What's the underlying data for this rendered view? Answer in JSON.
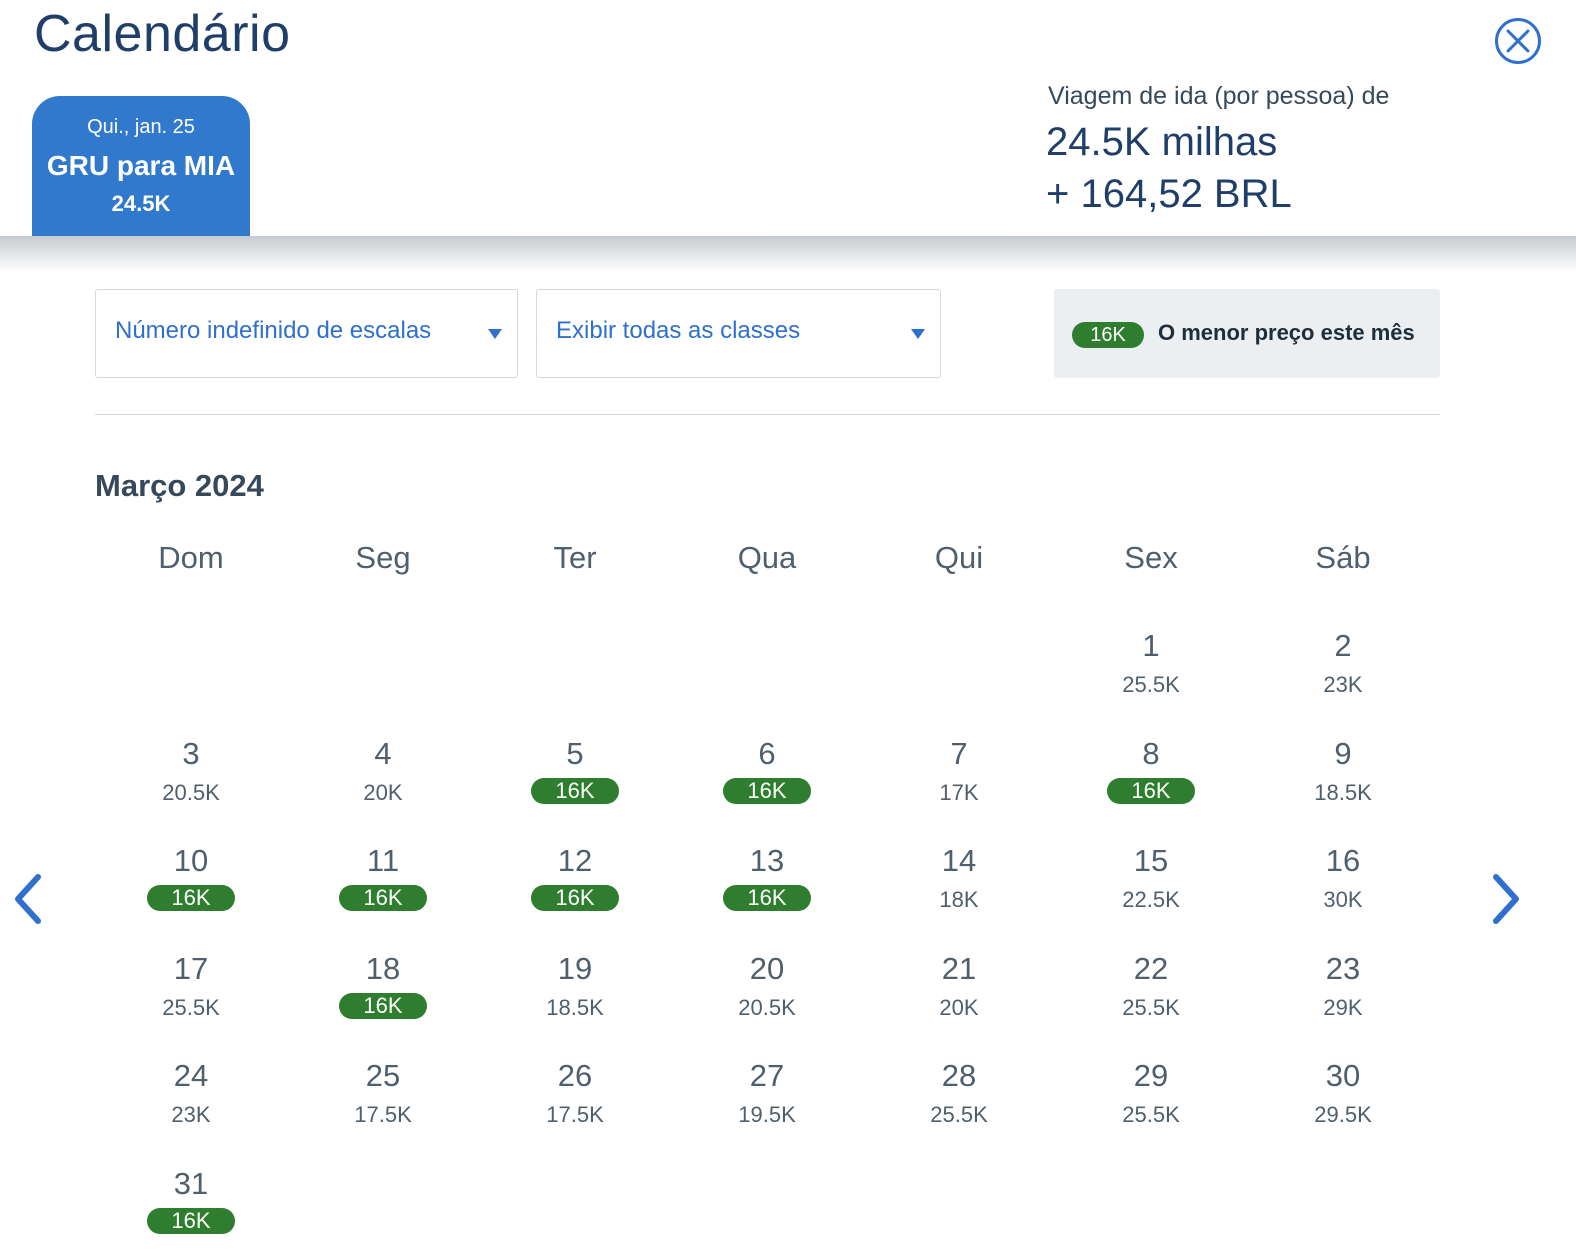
{
  "header": {
    "title": "Calendário",
    "tab": {
      "date": "Qui., jan. 25",
      "route": "GRU para MIA",
      "price": "24.5K"
    },
    "fare": {
      "label": "Viagem de ida (por pessoa) de",
      "miles": "24.5K milhas",
      "cash": "+ 164,52 BRL"
    }
  },
  "filters": {
    "stops": "Número indefinido de escalas",
    "cabin": "Exibir todas as classes"
  },
  "legend": {
    "badge": "16K",
    "text": "O menor preço este mês"
  },
  "colors": {
    "primary": "#3179cc",
    "accent_text": "#2f6fce",
    "lowest_badge": "#2f7d2f",
    "title": "#1f3f6a"
  },
  "icons": {
    "close": "close-icon",
    "prev": "chevron-left-icon",
    "next": "chevron-right-icon"
  },
  "calendar": {
    "month": "Março 2024",
    "weekdays": [
      "Dom",
      "Seg",
      "Ter",
      "Qua",
      "Qui",
      "Sex",
      "Sáb"
    ],
    "first_weekday_index": 5,
    "days": [
      {
        "day": "1",
        "price": "25.5K",
        "lowest": false
      },
      {
        "day": "2",
        "price": "23K",
        "lowest": false
      },
      {
        "day": "3",
        "price": "20.5K",
        "lowest": false
      },
      {
        "day": "4",
        "price": "20K",
        "lowest": false
      },
      {
        "day": "5",
        "price": "16K",
        "lowest": true
      },
      {
        "day": "6",
        "price": "16K",
        "lowest": true
      },
      {
        "day": "7",
        "price": "17K",
        "lowest": false
      },
      {
        "day": "8",
        "price": "16K",
        "lowest": true
      },
      {
        "day": "9",
        "price": "18.5K",
        "lowest": false
      },
      {
        "day": "10",
        "price": "16K",
        "lowest": true
      },
      {
        "day": "11",
        "price": "16K",
        "lowest": true
      },
      {
        "day": "12",
        "price": "16K",
        "lowest": true
      },
      {
        "day": "13",
        "price": "16K",
        "lowest": true
      },
      {
        "day": "14",
        "price": "18K",
        "lowest": false
      },
      {
        "day": "15",
        "price": "22.5K",
        "lowest": false
      },
      {
        "day": "16",
        "price": "30K",
        "lowest": false
      },
      {
        "day": "17",
        "price": "25.5K",
        "lowest": false
      },
      {
        "day": "18",
        "price": "16K",
        "lowest": true
      },
      {
        "day": "19",
        "price": "18.5K",
        "lowest": false
      },
      {
        "day": "20",
        "price": "20.5K",
        "lowest": false
      },
      {
        "day": "21",
        "price": "20K",
        "lowest": false
      },
      {
        "day": "22",
        "price": "25.5K",
        "lowest": false
      },
      {
        "day": "23",
        "price": "29K",
        "lowest": false
      },
      {
        "day": "24",
        "price": "23K",
        "lowest": false
      },
      {
        "day": "25",
        "price": "17.5K",
        "lowest": false
      },
      {
        "day": "26",
        "price": "17.5K",
        "lowest": false
      },
      {
        "day": "27",
        "price": "19.5K",
        "lowest": false
      },
      {
        "day": "28",
        "price": "25.5K",
        "lowest": false
      },
      {
        "day": "29",
        "price": "25.5K",
        "lowest": false
      },
      {
        "day": "30",
        "price": "29.5K",
        "lowest": false
      },
      {
        "day": "31",
        "price": "16K",
        "lowest": true
      }
    ]
  }
}
